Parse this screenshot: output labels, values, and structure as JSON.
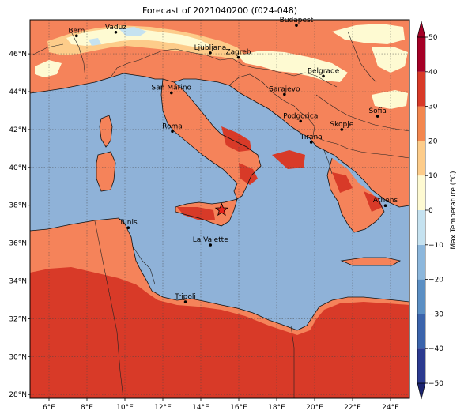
{
  "title": "Forecast of 2021040200 (f024-048)",
  "map": {
    "lon_range": [
      5,
      25
    ],
    "lat_range": [
      27.8,
      47.8
    ],
    "lon_ticks": [
      {
        "v": 6,
        "label": "6°E"
      },
      {
        "v": 8,
        "label": "8°E"
      },
      {
        "v": 10,
        "label": "10°E"
      },
      {
        "v": 12,
        "label": "12°E"
      },
      {
        "v": 14,
        "label": "14°E"
      },
      {
        "v": 16,
        "label": "16°E"
      },
      {
        "v": 18,
        "label": "18°E"
      },
      {
        "v": 20,
        "label": "20°E"
      },
      {
        "v": 22,
        "label": "22°E"
      },
      {
        "v": 24,
        "label": "24°E"
      }
    ],
    "lat_ticks": [
      {
        "v": 28,
        "label": "28°N"
      },
      {
        "v": 30,
        "label": "30°N"
      },
      {
        "v": 32,
        "label": "32°N"
      },
      {
        "v": 34,
        "label": "34°N"
      },
      {
        "v": 36,
        "label": "36°N"
      },
      {
        "v": 38,
        "label": "38°N"
      },
      {
        "v": 40,
        "label": "40°N"
      },
      {
        "v": 42,
        "label": "42°N"
      },
      {
        "v": 44,
        "label": "44°N"
      },
      {
        "v": 46,
        "label": "46°N"
      }
    ],
    "cities": [
      {
        "name": "Bern",
        "lon": 7.45,
        "lat": 46.95
      },
      {
        "name": "Vaduz",
        "lon": 9.52,
        "lat": 47.14
      },
      {
        "name": "Budapest",
        "lon": 19.04,
        "lat": 47.5
      },
      {
        "name": "Ljubljana",
        "lon": 14.5,
        "lat": 46.05
      },
      {
        "name": "Zagreb",
        "lon": 15.98,
        "lat": 45.81
      },
      {
        "name": "Belgrade",
        "lon": 20.46,
        "lat": 44.82
      },
      {
        "name": "San Marino",
        "lon": 12.45,
        "lat": 43.94
      },
      {
        "name": "Sarajevo",
        "lon": 18.41,
        "lat": 43.86
      },
      {
        "name": "Sofia",
        "lon": 23.32,
        "lat": 42.7
      },
      {
        "name": "Podgorica",
        "lon": 19.26,
        "lat": 42.44
      },
      {
        "name": "Skopje",
        "lon": 21.43,
        "lat": 42.0
      },
      {
        "name": "Roma",
        "lon": 12.5,
        "lat": 41.9
      },
      {
        "name": "Tirana",
        "lon": 19.82,
        "lat": 41.33
      },
      {
        "name": "Athens",
        "lon": 23.73,
        "lat": 37.98
      },
      {
        "name": "Tunis",
        "lon": 10.18,
        "lat": 36.81
      },
      {
        "name": "La Valette",
        "lon": 14.51,
        "lat": 35.9
      },
      {
        "name": "Tripoli",
        "lon": 13.19,
        "lat": 32.89
      }
    ],
    "star": {
      "lon": 15.1,
      "lat": 37.75
    }
  },
  "colorbar": {
    "label": "Max Temperature (°C)",
    "min": -50,
    "max": 50,
    "ticks": [
      {
        "v": 50,
        "label": "50"
      },
      {
        "v": 40,
        "label": "40"
      },
      {
        "v": 30,
        "label": "30"
      },
      {
        "v": 20,
        "label": "20"
      },
      {
        "v": 10,
        "label": "10"
      },
      {
        "v": 0,
        "label": "0"
      },
      {
        "v": -10,
        "label": "−10"
      },
      {
        "v": -20,
        "label": "−20"
      },
      {
        "v": -30,
        "label": "−30"
      },
      {
        "v": -40,
        "label": "−40"
      },
      {
        "v": -50,
        "label": "−50"
      }
    ],
    "colors": [
      "#2b3a90",
      "#3b64ac",
      "#5b8fc4",
      "#8cb7dc",
      "#c5e2f0",
      "#fefad2",
      "#fdcc8a",
      "#f3874f",
      "#d83a28",
      "#a50026"
    ]
  }
}
